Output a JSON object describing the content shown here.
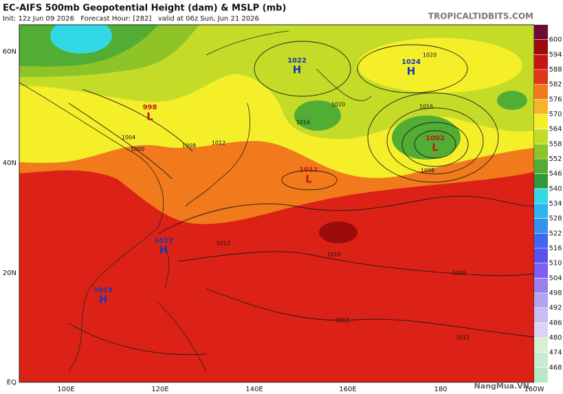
{
  "header": {
    "title": "EC-AIFS 500mb Geopotential Height (dam) & MSLP (mb)",
    "subtitle": "Init: 12z Jun 09 2026   Forecast Hour: [282]   valid at 06z Sun, Jun 21 2026",
    "site": "TROPICALTIDBITS.COM"
  },
  "lat_labels": [
    "60N",
    "40N",
    "20N",
    "EQ"
  ],
  "lon_labels": [
    "100E",
    "120E",
    "140E",
    "160E",
    "180",
    "160W"
  ],
  "colorbar": {
    "ticks": [
      600,
      594,
      588,
      582,
      576,
      570,
      564,
      558,
      552,
      546,
      540,
      534,
      528,
      522,
      516,
      510,
      504,
      498,
      492,
      486,
      480,
      474,
      468
    ],
    "colors": [
      "#6e0a3a",
      "#9c0c0c",
      "#c81414",
      "#e0361a",
      "#f07a1c",
      "#f8b428",
      "#f5ef2a",
      "#c4dc28",
      "#8ec428",
      "#52ad34",
      "#2e9a3c",
      "#32d8e4",
      "#30b4f0",
      "#3290f0",
      "#3e68ee",
      "#5a52ee",
      "#7c5ef0",
      "#9c80f0",
      "#b4a2f0",
      "#c8bcf2",
      "#ddd2f4",
      "#d6f0d0",
      "#c8ecd0",
      "#b8e8c8"
    ]
  },
  "centers": [
    {
      "symbol": "H",
      "value": "1022"
    },
    {
      "symbol": "H",
      "value": "1024"
    },
    {
      "symbol": "L",
      "value": "998"
    },
    {
      "symbol": "L",
      "value": "1011"
    },
    {
      "symbol": "L",
      "value": "1002"
    },
    {
      "symbol": "H",
      "value": "1017"
    },
    {
      "symbol": "H",
      "value": "1014"
    }
  ],
  "isobar_labels": [
    "1012",
    "1016",
    "1020",
    "1020",
    "1016",
    "1008",
    "1004",
    "1000",
    "1012",
    "1016",
    "1016",
    "1012",
    "1012",
    "1008"
  ],
  "watermark": "NangMua.VN"
}
